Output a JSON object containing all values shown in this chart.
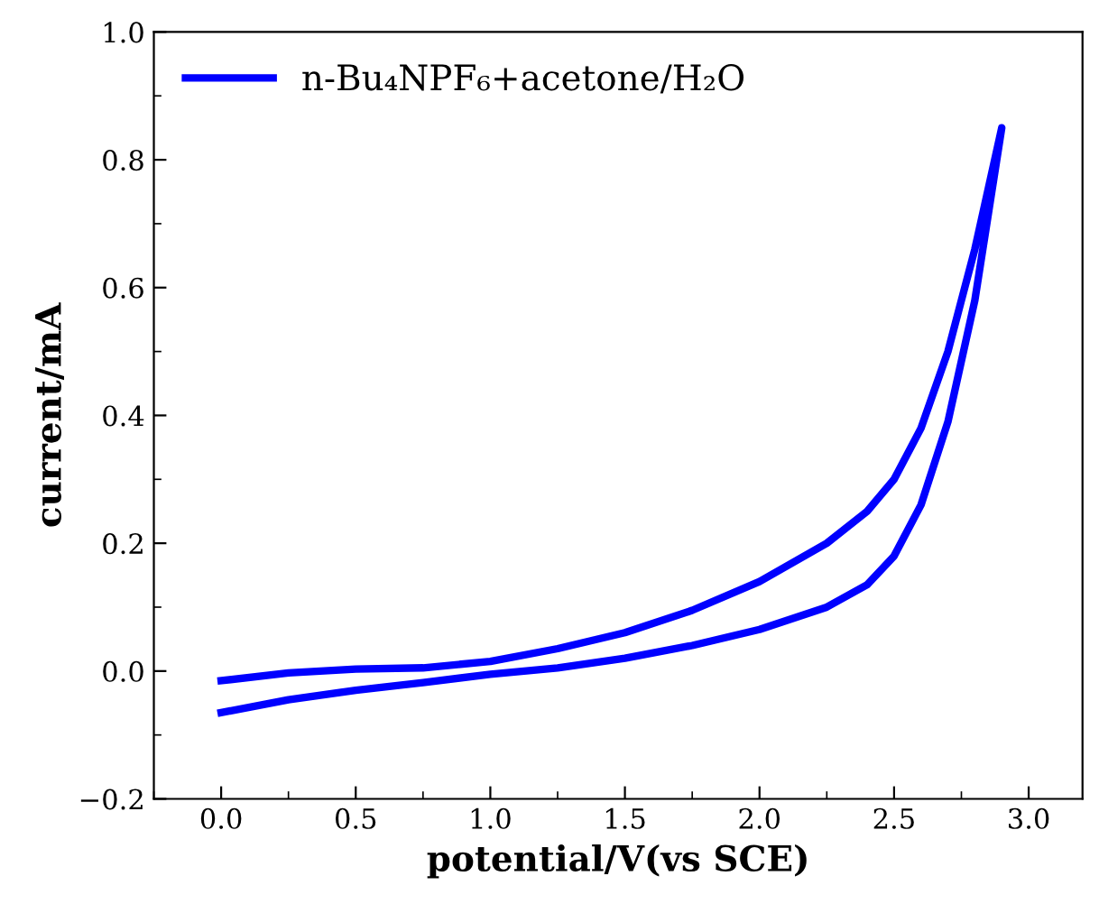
{
  "chart_data": {
    "type": "line",
    "xlabel": "potential/V(vs SCE)",
    "ylabel": "current/mA",
    "series": [
      {
        "name": "n-Bu₄NPF₆+acetone/H₂O",
        "color": "#0000ff",
        "x": [
          0,
          0.25,
          0.5,
          0.75,
          1.0,
          1.25,
          1.5,
          1.75,
          2.0,
          2.25,
          2.4,
          2.5,
          2.6,
          2.7,
          2.8,
          2.9,
          2.8,
          2.7,
          2.6,
          2.5,
          2.4,
          2.25,
          2.0,
          1.75,
          1.5,
          1.25,
          1.0,
          0.75,
          0.5,
          0.25,
          0
        ],
        "values": [
          -0.065,
          -0.045,
          -0.03,
          -0.018,
          -0.005,
          0.005,
          0.02,
          0.04,
          0.065,
          0.1,
          0.135,
          0.18,
          0.26,
          0.39,
          0.58,
          0.85,
          0.66,
          0.5,
          0.38,
          0.3,
          0.25,
          0.2,
          0.14,
          0.095,
          0.06,
          0.035,
          0.015,
          0.005,
          0.003,
          -0.003,
          -0.015
        ]
      }
    ],
    "xlim": [
      -0.25,
      3.2
    ],
    "xticks": [
      {
        "value": 0,
        "label": "0.0"
      },
      0.5,
      {
        "value": 1,
        "label": "1.0"
      },
      1.5,
      {
        "value": 2,
        "label": "2.0"
      },
      2.5,
      {
        "value": 3,
        "label": "3.0"
      }
    ],
    "ylim": [
      -0.2,
      1.0
    ],
    "yticks": [
      {
        "value": -0.2,
        "label": "−0.2"
      },
      {
        "value": 0,
        "label": "0.0"
      },
      0.2,
      0.4,
      0.6,
      0.8,
      {
        "value": 1,
        "label": "1.0"
      }
    ],
    "grid": false,
    "legend": "top left",
    "marker": "none",
    "line_style": "solid"
  }
}
